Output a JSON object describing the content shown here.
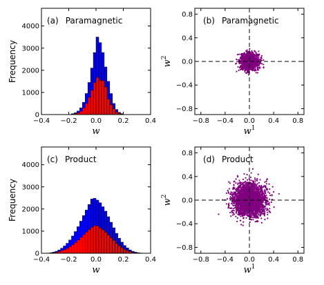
{
  "chart_data": [
    {
      "id": "a",
      "type": "bar",
      "panel_label": "(a)",
      "title": "Paramagnetic",
      "xlabel": "w",
      "ylabel": "Frequency",
      "xlim": [
        -0.4,
        0.4
      ],
      "ylim": [
        0,
        4800
      ],
      "xticks": [
        "−0.4",
        "−0.2",
        "0.0",
        "0.2",
        "0.4"
      ],
      "yticks": [
        "0",
        "1000",
        "2000",
        "3000",
        "4000"
      ],
      "bin_width": 0.02,
      "series": [
        {
          "color": "#0000ff",
          "bins": [
            [
              -0.2,
              10
            ],
            [
              -0.18,
              40
            ],
            [
              -0.16,
              80
            ],
            [
              -0.14,
              160
            ],
            [
              -0.12,
              300
            ],
            [
              -0.1,
              550
            ],
            [
              -0.08,
              950
            ],
            [
              -0.06,
              1450
            ],
            [
              -0.04,
              2100
            ],
            [
              -0.02,
              2800
            ],
            [
              0.0,
              3500
            ],
            [
              0.02,
              3250
            ],
            [
              0.04,
              2800
            ],
            [
              0.06,
              2150
            ],
            [
              0.08,
              1500
            ],
            [
              0.1,
              950
            ],
            [
              0.12,
              500
            ],
            [
              0.14,
              230
            ],
            [
              0.16,
              100
            ],
            [
              0.18,
              40
            ]
          ]
        },
        {
          "color": "#ff0000",
          "bins": [
            [
              -0.2,
              5
            ],
            [
              -0.18,
              20
            ],
            [
              -0.16,
              40
            ],
            [
              -0.14,
              80
            ],
            [
              -0.12,
              150
            ],
            [
              -0.1,
              300
            ],
            [
              -0.08,
              500
            ],
            [
              -0.06,
              780
            ],
            [
              -0.04,
              1100
            ],
            [
              -0.02,
              1450
            ],
            [
              0.0,
              1680
            ],
            [
              0.02,
              1550
            ],
            [
              0.04,
              1530
            ],
            [
              0.06,
              1250
            ],
            [
              0.08,
              700
            ],
            [
              0.1,
              450
            ],
            [
              0.12,
              260
            ],
            [
              0.14,
              120
            ],
            [
              0.16,
              50
            ],
            [
              0.18,
              20
            ]
          ]
        }
      ]
    },
    {
      "id": "b",
      "type": "scatter",
      "panel_label": "(b)",
      "title": "Paramagnetic",
      "xlabel": "w",
      "xlabel_sup": "1",
      "ylabel": "w",
      "ylabel_sup": "2",
      "xlim": [
        -0.9,
        0.9
      ],
      "ylim": [
        -0.9,
        0.9
      ],
      "xticks": [
        "−0.8",
        "−0.4",
        "0.0",
        "0.4",
        "0.8"
      ],
      "yticks": [
        "−0.8",
        "−0.4",
        "0.0",
        "0.4",
        "0.8"
      ],
      "color": "#800080",
      "std": [
        0.075,
        0.07
      ],
      "n_points": 1400,
      "seed": 7
    },
    {
      "id": "c",
      "type": "bar",
      "panel_label": "(c)",
      "title": "Product",
      "xlabel": "w",
      "ylabel": "Frequency",
      "xlim": [
        -0.4,
        0.4
      ],
      "ylim": [
        0,
        4800
      ],
      "xticks": [
        "−0.4",
        "−0.2",
        "0.0",
        "0.2",
        "0.4"
      ],
      "yticks": [
        "0",
        "1000",
        "2000",
        "3000",
        "4000"
      ],
      "bin_width": 0.02,
      "series": [
        {
          "color": "#0000ff",
          "bins": [
            [
              -0.36,
              10
            ],
            [
              -0.34,
              25
            ],
            [
              -0.32,
              50
            ],
            [
              -0.3,
              90
            ],
            [
              -0.28,
              150
            ],
            [
              -0.26,
              230
            ],
            [
              -0.24,
              330
            ],
            [
              -0.22,
              450
            ],
            [
              -0.2,
              600
            ],
            [
              -0.18,
              780
            ],
            [
              -0.16,
              980
            ],
            [
              -0.14,
              1200
            ],
            [
              -0.12,
              1450
            ],
            [
              -0.1,
              1700
            ],
            [
              -0.08,
              1950
            ],
            [
              -0.06,
              2200
            ],
            [
              -0.04,
              2450
            ],
            [
              -0.02,
              2480
            ],
            [
              0.0,
              2400
            ],
            [
              0.02,
              2280
            ],
            [
              0.04,
              2100
            ],
            [
              0.06,
              1900
            ],
            [
              0.08,
              1650
            ],
            [
              0.1,
              1400
            ],
            [
              0.12,
              1150
            ],
            [
              0.14,
              900
            ],
            [
              0.16,
              680
            ],
            [
              0.18,
              500
            ],
            [
              0.2,
              350
            ],
            [
              0.22,
              240
            ],
            [
              0.24,
              150
            ],
            [
              0.26,
              90
            ],
            [
              0.28,
              50
            ],
            [
              0.3,
              25
            ],
            [
              0.32,
              12
            ],
            [
              0.34,
              6
            ]
          ]
        },
        {
          "color": "#ff0000",
          "bins": [
            [
              -0.36,
              5
            ],
            [
              -0.34,
              12
            ],
            [
              -0.32,
              25
            ],
            [
              -0.3,
              45
            ],
            [
              -0.28,
              75
            ],
            [
              -0.26,
              115
            ],
            [
              -0.24,
              165
            ],
            [
              -0.22,
              225
            ],
            [
              -0.2,
              300
            ],
            [
              -0.18,
              390
            ],
            [
              -0.16,
              490
            ],
            [
              -0.14,
              600
            ],
            [
              -0.12,
              720
            ],
            [
              -0.1,
              840
            ],
            [
              -0.08,
              960
            ],
            [
              -0.06,
              1080
            ],
            [
              -0.04,
              1180
            ],
            [
              -0.02,
              1250
            ],
            [
              0.0,
              1230
            ],
            [
              0.02,
              1150
            ],
            [
              0.04,
              1060
            ],
            [
              0.06,
              950
            ],
            [
              0.08,
              830
            ],
            [
              0.1,
              700
            ],
            [
              0.12,
              580
            ],
            [
              0.14,
              450
            ],
            [
              0.16,
              340
            ],
            [
              0.18,
              250
            ],
            [
              0.2,
              175
            ],
            [
              0.22,
              120
            ],
            [
              0.24,
              75
            ],
            [
              0.26,
              45
            ],
            [
              0.28,
              25
            ],
            [
              0.3,
              12
            ],
            [
              0.32,
              6
            ],
            [
              0.34,
              3
            ]
          ]
        }
      ]
    },
    {
      "id": "d",
      "type": "scatter",
      "panel_label": "(d)",
      "title": "Product",
      "xlabel": "w",
      "xlabel_sup": "1",
      "ylabel": "w",
      "ylabel_sup": "2",
      "xlim": [
        -0.9,
        0.9
      ],
      "ylim": [
        -0.9,
        0.9
      ],
      "xticks": [
        "−0.8",
        "−0.4",
        "0.0",
        "0.4",
        "0.8"
      ],
      "yticks": [
        "−0.8",
        "−0.4",
        "0.0",
        "0.4",
        "0.8"
      ],
      "color": "#800080",
      "std": [
        0.13,
        0.13
      ],
      "n_points": 3000,
      "seed": 13
    }
  ]
}
